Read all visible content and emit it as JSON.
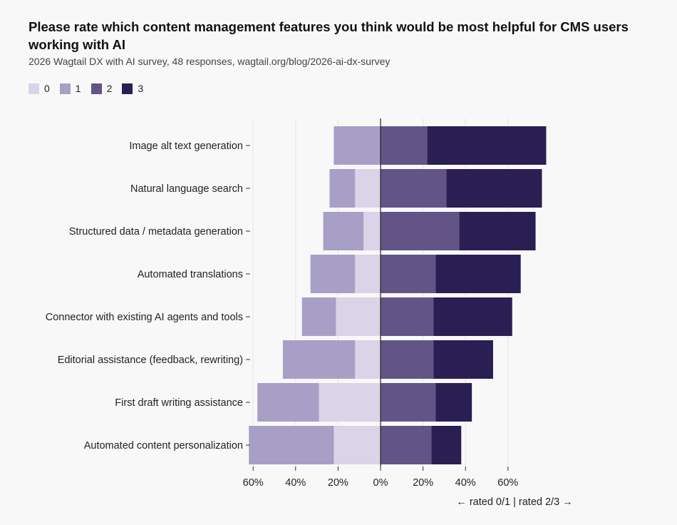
{
  "header": {
    "title": "Please rate which content management features you think would be most helpful for CMS users working with AI",
    "subtitle": "2026 Wagtail DX with AI survey, 48 responses, wagtail.org/blog/2026-ai-dx-survey"
  },
  "legend": {
    "items": [
      {
        "label": "0",
        "color": "#d9d4e7"
      },
      {
        "label": "1",
        "color": "#a89fc6"
      },
      {
        "label": "2",
        "color": "#625487"
      },
      {
        "label": "3",
        "color": "#2a1f52"
      }
    ]
  },
  "chart_data": {
    "type": "bar",
    "orientation": "horizontal",
    "layout": "diverging-stacked",
    "categories": [
      "Image alt text generation",
      "Natural language search",
      "Structured data / metadata generation",
      "Automated translations",
      "Connector with existing AI agents and tools",
      "Editorial assistance (feedback, rewriting)",
      "First draft writing assistance",
      "Automated content personalization"
    ],
    "series": [
      {
        "name": "0",
        "side": "left",
        "color": "#d9d4e7",
        "values": [
          0,
          12,
          8,
          12,
          21,
          12,
          29,
          22
        ]
      },
      {
        "name": "1",
        "side": "left",
        "color": "#a89fc6",
        "values": [
          22,
          12,
          19,
          21,
          16,
          34,
          29,
          40
        ]
      },
      {
        "name": "2",
        "side": "right",
        "color": "#625487",
        "values": [
          22,
          31,
          37,
          26,
          25,
          25,
          26,
          24
        ]
      },
      {
        "name": "3",
        "side": "right",
        "color": "#2a1f52",
        "values": [
          56,
          45,
          36,
          40,
          37,
          28,
          17,
          14
        ]
      }
    ],
    "xlim": [
      -62,
      78
    ],
    "xticks": [
      -60,
      -40,
      -20,
      0,
      20,
      40,
      60
    ],
    "xtick_labels": [
      "60%",
      "40%",
      "20%",
      "0%",
      "20%",
      "40%",
      "60%"
    ],
    "grid": true,
    "legend_position": "top-left",
    "axis_note": {
      "left": "← rated 0/1",
      "separator": "|",
      "right": "rated 2/3 →"
    }
  }
}
